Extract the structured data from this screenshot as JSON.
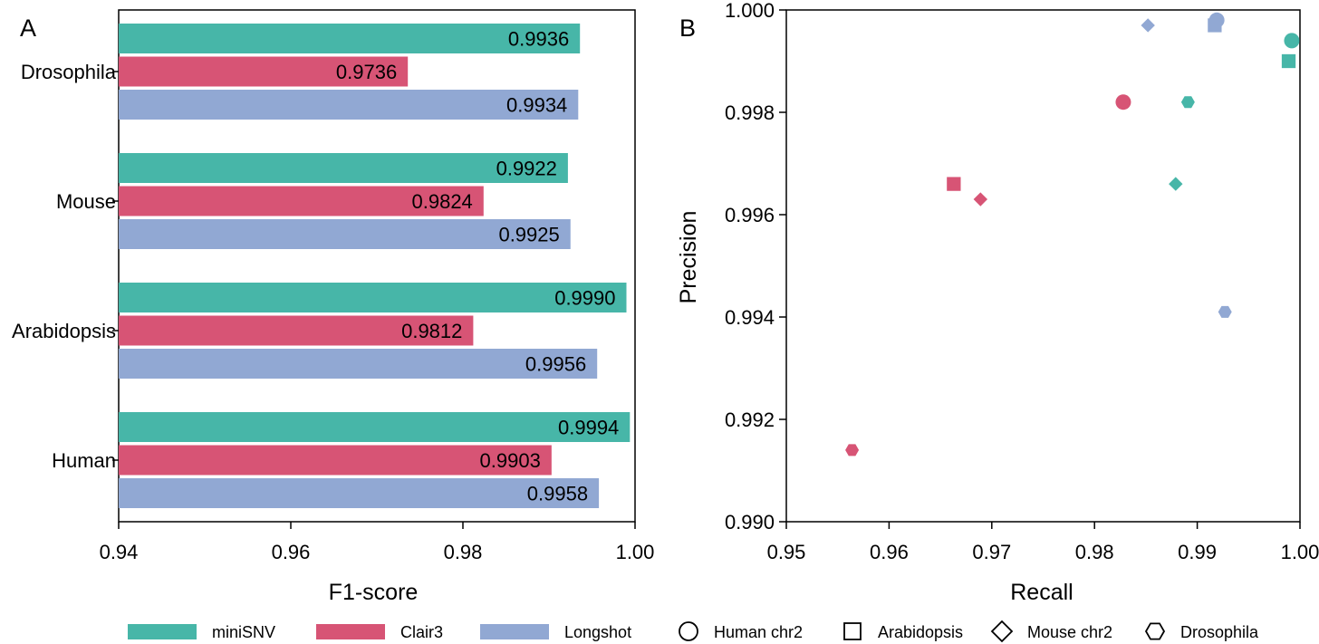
{
  "colors": {
    "minisnv": "#47b6a8",
    "clair3": "#d75475",
    "longshot": "#91a8d3"
  },
  "panels": {
    "a_label": "A",
    "b_label": "B"
  },
  "chart_data": [
    {
      "type": "bar",
      "orientation": "horizontal",
      "xlabel": "F1-score",
      "ylabel": "",
      "xlim": [
        0.94,
        1.0
      ],
      "xticks": [
        "0.94",
        "0.96",
        "0.98",
        "1.00"
      ],
      "grid": false,
      "categories": [
        "Drosophila",
        "Mouse",
        "Arabidopsis",
        "Human"
      ],
      "series": [
        {
          "name": "miniSNV",
          "color": "#47b6a8",
          "values": [
            0.9936,
            0.9922,
            0.999,
            0.9994
          ],
          "labels": [
            "0.9936",
            "0.9922",
            "0.9990",
            "0.9994"
          ]
        },
        {
          "name": "Clair3",
          "color": "#d75475",
          "values": [
            0.9736,
            0.9824,
            0.9812,
            0.9903
          ],
          "labels": [
            "0.9736",
            "0.9824",
            "0.9812",
            "0.9903"
          ]
        },
        {
          "name": "Longshot",
          "color": "#91a8d3",
          "values": [
            0.9934,
            0.9925,
            0.9956,
            0.9958
          ],
          "labels": [
            "0.9934",
            "0.9925",
            "0.9956",
            "0.9958"
          ]
        }
      ]
    },
    {
      "type": "scatter",
      "xlabel": "Recall",
      "ylabel": "Precision",
      "xlim": [
        0.95,
        1.0
      ],
      "ylim": [
        0.99,
        1.0
      ],
      "xticks": [
        "0.95",
        "0.96",
        "0.97",
        "0.98",
        "0.99",
        "1.00"
      ],
      "yticks": [
        "0.990",
        "0.992",
        "0.994",
        "0.996",
        "0.998",
        "1.000"
      ],
      "grid": false,
      "points": [
        {
          "tool": "miniSNV",
          "dataset": "Human chr2",
          "shape": "circle",
          "recall": 0.9992,
          "precision": 0.9994
        },
        {
          "tool": "miniSNV",
          "dataset": "Arabidopsis",
          "shape": "square",
          "recall": 0.9989,
          "precision": 0.999
        },
        {
          "tool": "miniSNV",
          "dataset": "Mouse chr2",
          "shape": "diamond",
          "recall": 0.9879,
          "precision": 0.9966
        },
        {
          "tool": "miniSNV",
          "dataset": "Drosophila",
          "shape": "hexagon",
          "recall": 0.9891,
          "precision": 0.9982
        },
        {
          "tool": "Clair3",
          "dataset": "Human chr2",
          "shape": "circle",
          "recall": 0.9828,
          "precision": 0.9982
        },
        {
          "tool": "Clair3",
          "dataset": "Arabidopsis",
          "shape": "square",
          "recall": 0.9663,
          "precision": 0.9966
        },
        {
          "tool": "Clair3",
          "dataset": "Mouse chr2",
          "shape": "diamond",
          "recall": 0.9689,
          "precision": 0.9963
        },
        {
          "tool": "Clair3",
          "dataset": "Drosophila",
          "shape": "hexagon",
          "recall": 0.9564,
          "precision": 0.9914
        },
        {
          "tool": "Longshot",
          "dataset": "Human chr2",
          "shape": "circle",
          "recall": 0.9919,
          "precision": 0.9998
        },
        {
          "tool": "Longshot",
          "dataset": "Arabidopsis",
          "shape": "square",
          "recall": 0.9917,
          "precision": 0.9997
        },
        {
          "tool": "Longshot",
          "dataset": "Mouse chr2",
          "shape": "diamond",
          "recall": 0.9852,
          "precision": 0.9997
        },
        {
          "tool": "Longshot",
          "dataset": "Drosophila",
          "shape": "hexagon",
          "recall": 0.9927,
          "precision": 0.9941
        }
      ]
    }
  ],
  "legend": {
    "tools": [
      {
        "label": "miniSNV",
        "color": "#47b6a8"
      },
      {
        "label": "Clair3",
        "color": "#d75475"
      },
      {
        "label": "Longshot",
        "color": "#91a8d3"
      }
    ],
    "shapes": [
      {
        "label": "Human chr2",
        "shape": "circle"
      },
      {
        "label": "Arabidopsis",
        "shape": "square"
      },
      {
        "label": "Mouse chr2",
        "shape": "diamond"
      },
      {
        "label": "Drosophila",
        "shape": "hexagon"
      }
    ]
  }
}
